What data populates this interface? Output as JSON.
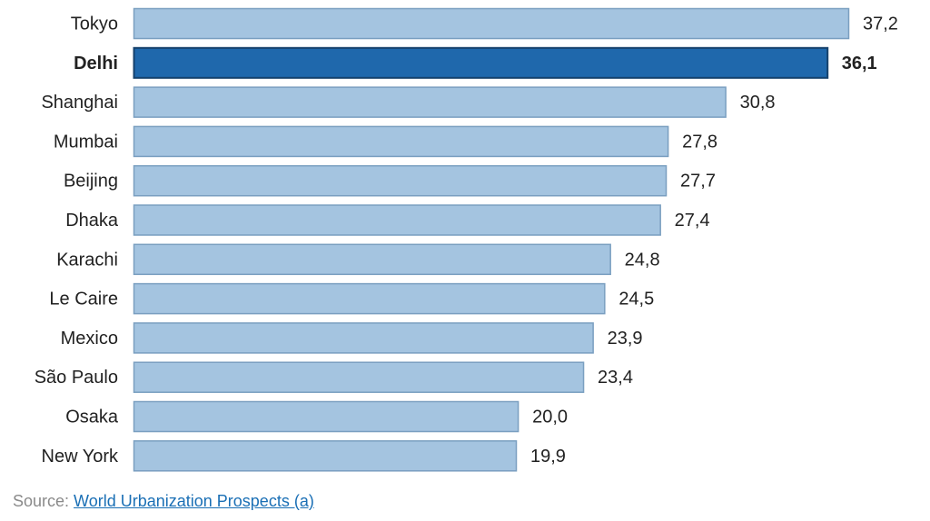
{
  "chart_data": {
    "type": "bar",
    "orientation": "horizontal",
    "categories": [
      "Tokyo",
      "Delhi",
      "Shanghai",
      "Mumbai",
      "Beijing",
      "Dhaka",
      "Karachi",
      "Le Caire",
      "Mexico",
      "São Paulo",
      "Osaka",
      "New York"
    ],
    "values": [
      37.2,
      36.1,
      30.8,
      27.8,
      27.7,
      27.4,
      24.8,
      24.5,
      23.9,
      23.4,
      20.0,
      19.9
    ],
    "value_labels": [
      "37,2",
      "36,1",
      "30,8",
      "27,8",
      "27,7",
      "27,4",
      "24,8",
      "24,5",
      "23,9",
      "23,4",
      "20,0",
      "19,9"
    ],
    "highlight": "Delhi",
    "xlim": [
      0,
      37.2
    ],
    "grid": false,
    "colors": {
      "bar": "#a4c4e0",
      "bar_stroke": "#7a9fc0",
      "highlight": "#1f68ac",
      "highlight_stroke": "#15416c"
    }
  },
  "source": {
    "prefix": "Source: ",
    "link_text": "World Urbanization Prospects (a)"
  }
}
